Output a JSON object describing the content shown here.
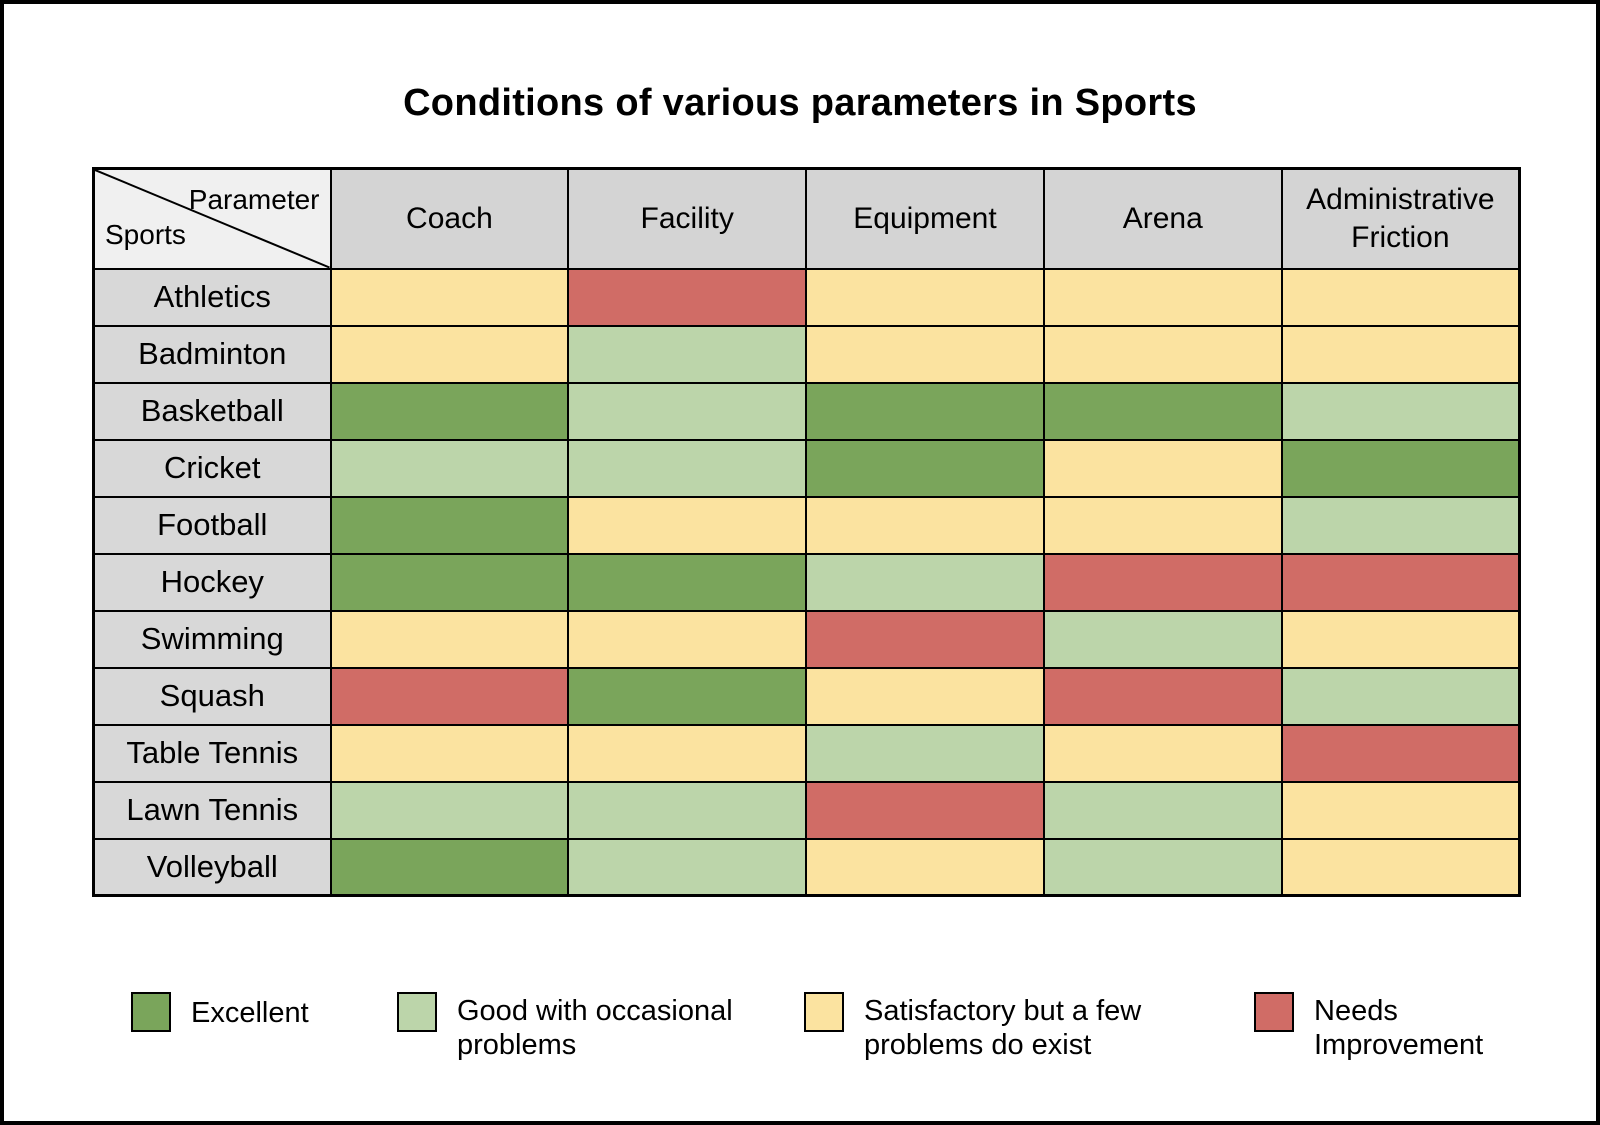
{
  "title": "Conditions of various parameters in Sports",
  "table": {
    "corner": {
      "top_right": "Parameter",
      "bottom_left": "Sports"
    },
    "columns": [
      "Coach",
      "Facility",
      "Equipment",
      "Arena",
      "Administrative Friction"
    ],
    "rows": [
      {
        "sport": "Athletics",
        "values": [
          "satisfactory",
          "needs_improvement",
          "satisfactory",
          "satisfactory",
          "satisfactory"
        ]
      },
      {
        "sport": "Badminton",
        "values": [
          "satisfactory",
          "good",
          "satisfactory",
          "satisfactory",
          "satisfactory"
        ]
      },
      {
        "sport": "Basketball",
        "values": [
          "excellent",
          "good",
          "excellent",
          "excellent",
          "good"
        ]
      },
      {
        "sport": "Cricket",
        "values": [
          "good",
          "good",
          "excellent",
          "satisfactory",
          "excellent"
        ]
      },
      {
        "sport": "Football",
        "values": [
          "excellent",
          "satisfactory",
          "satisfactory",
          "satisfactory",
          "good"
        ]
      },
      {
        "sport": "Hockey",
        "values": [
          "excellent",
          "excellent",
          "good",
          "needs_improvement",
          "needs_improvement"
        ]
      },
      {
        "sport": "Swimming",
        "values": [
          "satisfactory",
          "satisfactory",
          "needs_improvement",
          "good",
          "satisfactory"
        ]
      },
      {
        "sport": "Squash",
        "values": [
          "needs_improvement",
          "excellent",
          "satisfactory",
          "needs_improvement",
          "good"
        ]
      },
      {
        "sport": "Table Tennis",
        "values": [
          "satisfactory",
          "satisfactory",
          "good",
          "satisfactory",
          "needs_improvement"
        ]
      },
      {
        "sport": "Lawn Tennis",
        "values": [
          "good",
          "good",
          "needs_improvement",
          "good",
          "satisfactory"
        ]
      },
      {
        "sport": "Volleyball",
        "values": [
          "excellent",
          "good",
          "satisfactory",
          "good",
          "satisfactory"
        ]
      }
    ]
  },
  "legend": [
    {
      "key": "excellent",
      "label": "Excellent"
    },
    {
      "key": "good",
      "label": "Good with occasional problems"
    },
    {
      "key": "satisfactory",
      "label": "Satisfactory but a few problems do exist"
    },
    {
      "key": "needs_improvement",
      "label": "Needs Improvement"
    }
  ],
  "colors": {
    "excellent": "#7aa55b",
    "good": "#bcd5aa",
    "satisfactory": "#fbe3a0",
    "needs_improvement": "#d06c66",
    "header_bg": "#d4d4d4",
    "row_label_bg": "#d8d8d8",
    "corner_bg": "#f0f0f0",
    "border": "#000000"
  },
  "chart_data": {
    "type": "heatmap",
    "title": "Conditions of various parameters in Sports",
    "x_categories": [
      "Coach",
      "Facility",
      "Equipment",
      "Arena",
      "Administrative Friction"
    ],
    "y_categories": [
      "Athletics",
      "Badminton",
      "Basketball",
      "Cricket",
      "Football",
      "Hockey",
      "Swimming",
      "Squash",
      "Table Tennis",
      "Lawn Tennis",
      "Volleyball"
    ],
    "values": [
      [
        "satisfactory",
        "needs_improvement",
        "satisfactory",
        "satisfactory",
        "satisfactory"
      ],
      [
        "satisfactory",
        "good",
        "satisfactory",
        "satisfactory",
        "satisfactory"
      ],
      [
        "excellent",
        "good",
        "excellent",
        "excellent",
        "good"
      ],
      [
        "good",
        "good",
        "excellent",
        "satisfactory",
        "excellent"
      ],
      [
        "excellent",
        "satisfactory",
        "satisfactory",
        "satisfactory",
        "good"
      ],
      [
        "excellent",
        "excellent",
        "good",
        "needs_improvement",
        "needs_improvement"
      ],
      [
        "satisfactory",
        "satisfactory",
        "needs_improvement",
        "good",
        "satisfactory"
      ],
      [
        "needs_improvement",
        "excellent",
        "satisfactory",
        "needs_improvement",
        "good"
      ],
      [
        "satisfactory",
        "satisfactory",
        "good",
        "satisfactory",
        "needs_improvement"
      ],
      [
        "good",
        "good",
        "needs_improvement",
        "good",
        "satisfactory"
      ],
      [
        "excellent",
        "good",
        "satisfactory",
        "good",
        "satisfactory"
      ]
    ],
    "value_labels": {
      "excellent": "Excellent",
      "good": "Good with occasional problems",
      "satisfactory": "Satisfactory but a few problems do exist",
      "needs_improvement": "Needs Improvement"
    },
    "legend_position": "bottom",
    "grid": true
  }
}
